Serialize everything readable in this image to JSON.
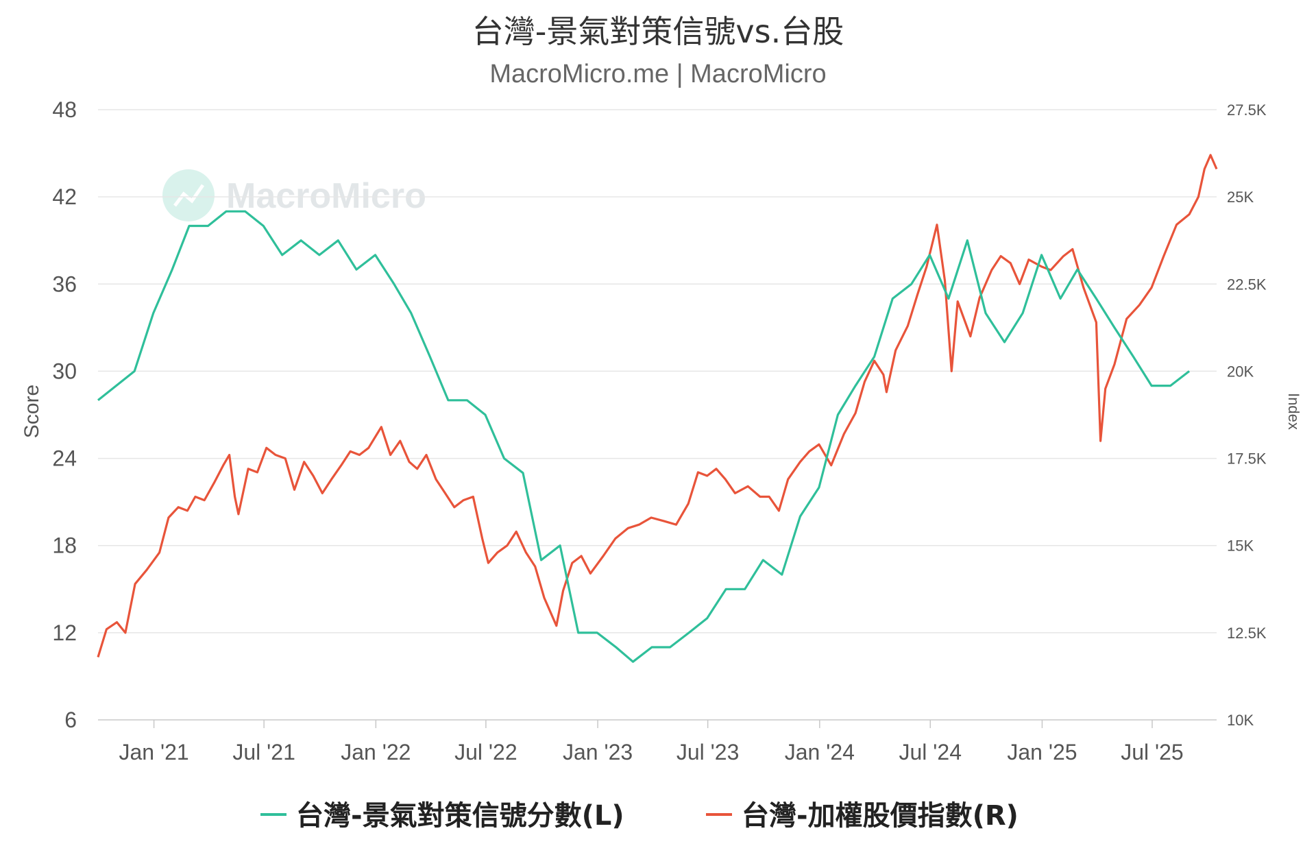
{
  "chart_data": {
    "type": "line",
    "title": "台灣-景氣對策信號vs.台股",
    "subtitle": "MacroMicro.me | MacroMicro",
    "watermark": "MacroMicro",
    "y_left": {
      "label": "Score",
      "ticks": [
        "48",
        "42",
        "36",
        "30",
        "24",
        "18",
        "12",
        "6"
      ],
      "range": [
        6,
        48
      ]
    },
    "y_right": {
      "label": "Index",
      "ticks": [
        "27.5K",
        "25K",
        "22.5K",
        "20K",
        "17.5K",
        "15K",
        "12.5K",
        "10K"
      ],
      "range": [
        10000,
        27500
      ]
    },
    "x_ticks": [
      "Jan '21",
      "Jul '21",
      "Jan '22",
      "Jul '22",
      "Jan '23",
      "Jul '23",
      "Jan '24",
      "Jul '24",
      "Jan '25",
      "Jul '25"
    ],
    "x_range": [
      "2020-10-01",
      "2025-10-15"
    ],
    "grid": true,
    "legend_position": "bottom",
    "colors": {
      "score": "#2fbf9a",
      "index": "#e8543a",
      "grid": "#e6e6e6"
    },
    "series": [
      {
        "name": "台灣-景氣對策信號分數(L)",
        "axis": "left",
        "color": "#2fbf9a",
        "points": [
          [
            "2020-10-01",
            28
          ],
          [
            "2020-11-30",
            30
          ],
          [
            "2020-12-31",
            34
          ],
          [
            "2021-01-31",
            37
          ],
          [
            "2021-02-28",
            40
          ],
          [
            "2021-03-31",
            40
          ],
          [
            "2021-04-30",
            41
          ],
          [
            "2021-05-31",
            41
          ],
          [
            "2021-06-30",
            40
          ],
          [
            "2021-07-31",
            38
          ],
          [
            "2021-08-31",
            39
          ],
          [
            "2021-09-30",
            38
          ],
          [
            "2021-10-31",
            39
          ],
          [
            "2021-11-30",
            37
          ],
          [
            "2021-12-31",
            38
          ],
          [
            "2022-01-31",
            36
          ],
          [
            "2022-02-28",
            34
          ],
          [
            "2022-03-31",
            31
          ],
          [
            "2022-04-30",
            28
          ],
          [
            "2022-05-31",
            28
          ],
          [
            "2022-06-30",
            27
          ],
          [
            "2022-07-31",
            24
          ],
          [
            "2022-08-31",
            23
          ],
          [
            "2022-09-30",
            17
          ],
          [
            "2022-10-31",
            18
          ],
          [
            "2022-11-30",
            12
          ],
          [
            "2022-12-31",
            12
          ],
          [
            "2023-01-31",
            11
          ],
          [
            "2023-02-28",
            10
          ],
          [
            "2023-03-31",
            11
          ],
          [
            "2023-04-30",
            11
          ],
          [
            "2023-05-31",
            12
          ],
          [
            "2023-06-30",
            13
          ],
          [
            "2023-07-31",
            15
          ],
          [
            "2023-08-31",
            15
          ],
          [
            "2023-09-30",
            17
          ],
          [
            "2023-10-31",
            16
          ],
          [
            "2023-11-30",
            20
          ],
          [
            "2023-12-31",
            22
          ],
          [
            "2024-01-31",
            27
          ],
          [
            "2024-02-29",
            29
          ],
          [
            "2024-03-31",
            31
          ],
          [
            "2024-04-30",
            35
          ],
          [
            "2024-05-31",
            36
          ],
          [
            "2024-06-30",
            38
          ],
          [
            "2024-07-31",
            35
          ],
          [
            "2024-08-31",
            39
          ],
          [
            "2024-09-30",
            34
          ],
          [
            "2024-10-31",
            32
          ],
          [
            "2024-11-30",
            34
          ],
          [
            "2024-12-31",
            38
          ],
          [
            "2025-01-31",
            35
          ],
          [
            "2025-02-28",
            37
          ],
          [
            "2025-03-31",
            35
          ],
          [
            "2025-04-30",
            33
          ],
          [
            "2025-05-31",
            31
          ],
          [
            "2025-06-30",
            29
          ],
          [
            "2025-07-31",
            29
          ],
          [
            "2025-08-31",
            30
          ]
        ]
      },
      {
        "name": "台灣-加權股價指數(R)",
        "axis": "right",
        "color": "#e8543a",
        "points": [
          [
            "2020-10-01",
            11800
          ],
          [
            "2020-10-15",
            12600
          ],
          [
            "2020-11-01",
            12800
          ],
          [
            "2020-11-15",
            12500
          ],
          [
            "2020-12-01",
            13900
          ],
          [
            "2020-12-20",
            14300
          ],
          [
            "2021-01-10",
            14800
          ],
          [
            "2021-01-25",
            15800
          ],
          [
            "2021-02-10",
            16100
          ],
          [
            "2021-02-25",
            16000
          ],
          [
            "2021-03-10",
            16400
          ],
          [
            "2021-03-25",
            16300
          ],
          [
            "2021-04-10",
            16800
          ],
          [
            "2021-04-25",
            17300
          ],
          [
            "2021-05-05",
            17600
          ],
          [
            "2021-05-14",
            16400
          ],
          [
            "2021-05-20",
            15900
          ],
          [
            "2021-06-05",
            17200
          ],
          [
            "2021-06-20",
            17100
          ],
          [
            "2021-07-05",
            17800
          ],
          [
            "2021-07-20",
            17600
          ],
          [
            "2021-08-05",
            17500
          ],
          [
            "2021-08-20",
            16600
          ],
          [
            "2021-09-05",
            17400
          ],
          [
            "2021-09-20",
            17000
          ],
          [
            "2021-10-05",
            16500
          ],
          [
            "2021-10-20",
            16900
          ],
          [
            "2021-11-05",
            17300
          ],
          [
            "2021-11-20",
            17700
          ],
          [
            "2021-12-05",
            17600
          ],
          [
            "2021-12-20",
            17800
          ],
          [
            "2022-01-10",
            18400
          ],
          [
            "2022-01-25",
            17600
          ],
          [
            "2022-02-10",
            18000
          ],
          [
            "2022-02-25",
            17400
          ],
          [
            "2022-03-10",
            17200
          ],
          [
            "2022-03-25",
            17600
          ],
          [
            "2022-04-10",
            16900
          ],
          [
            "2022-04-25",
            16500
          ],
          [
            "2022-05-10",
            16100
          ],
          [
            "2022-05-25",
            16300
          ],
          [
            "2022-06-10",
            16400
          ],
          [
            "2022-06-25",
            15200
          ],
          [
            "2022-07-05",
            14500
          ],
          [
            "2022-07-20",
            14800
          ],
          [
            "2022-08-05",
            15000
          ],
          [
            "2022-08-20",
            15400
          ],
          [
            "2022-09-05",
            14800
          ],
          [
            "2022-09-20",
            14400
          ],
          [
            "2022-10-05",
            13500
          ],
          [
            "2022-10-25",
            12700
          ],
          [
            "2022-11-05",
            13700
          ],
          [
            "2022-11-20",
            14500
          ],
          [
            "2022-12-05",
            14700
          ],
          [
            "2022-12-20",
            14200
          ],
          [
            "2023-01-10",
            14700
          ],
          [
            "2023-01-30",
            15200
          ],
          [
            "2023-02-20",
            15500
          ],
          [
            "2023-03-10",
            15600
          ],
          [
            "2023-03-30",
            15800
          ],
          [
            "2023-04-20",
            15700
          ],
          [
            "2023-05-10",
            15600
          ],
          [
            "2023-05-30",
            16200
          ],
          [
            "2023-06-15",
            17100
          ],
          [
            "2023-06-30",
            17000
          ],
          [
            "2023-07-15",
            17200
          ],
          [
            "2023-07-30",
            16900
          ],
          [
            "2023-08-15",
            16500
          ],
          [
            "2023-09-05",
            16700
          ],
          [
            "2023-09-25",
            16400
          ],
          [
            "2023-10-10",
            16400
          ],
          [
            "2023-10-26",
            16000
          ],
          [
            "2023-11-10",
            16900
          ],
          [
            "2023-11-30",
            17400
          ],
          [
            "2023-12-15",
            17700
          ],
          [
            "2023-12-31",
            17900
          ],
          [
            "2024-01-20",
            17300
          ],
          [
            "2024-02-10",
            18200
          ],
          [
            "2024-02-29",
            18800
          ],
          [
            "2024-03-15",
            19700
          ],
          [
            "2024-03-31",
            20300
          ],
          [
            "2024-04-15",
            19900
          ],
          [
            "2024-04-20",
            19400
          ],
          [
            "2024-05-05",
            20600
          ],
          [
            "2024-05-25",
            21300
          ],
          [
            "2024-06-10",
            22200
          ],
          [
            "2024-06-25",
            23000
          ],
          [
            "2024-07-12",
            24200
          ],
          [
            "2024-07-25",
            22600
          ],
          [
            "2024-08-05",
            20000
          ],
          [
            "2024-08-15",
            22000
          ],
          [
            "2024-09-05",
            21000
          ],
          [
            "2024-09-20",
            22100
          ],
          [
            "2024-10-10",
            22900
          ],
          [
            "2024-10-25",
            23300
          ],
          [
            "2024-11-10",
            23100
          ],
          [
            "2024-11-25",
            22500
          ],
          [
            "2024-12-10",
            23200
          ],
          [
            "2024-12-31",
            23000
          ],
          [
            "2025-01-15",
            22900
          ],
          [
            "2025-02-05",
            23300
          ],
          [
            "2025-02-20",
            23500
          ],
          [
            "2025-03-10",
            22400
          ],
          [
            "2025-03-31",
            21400
          ],
          [
            "2025-04-07",
            18000
          ],
          [
            "2025-04-15",
            19500
          ],
          [
            "2025-04-30",
            20200
          ],
          [
            "2025-05-20",
            21500
          ],
          [
            "2025-06-10",
            21900
          ],
          [
            "2025-06-30",
            22400
          ],
          [
            "2025-07-20",
            23300
          ],
          [
            "2025-08-10",
            24200
          ],
          [
            "2025-08-31",
            24500
          ],
          [
            "2025-09-15",
            25000
          ],
          [
            "2025-09-25",
            25800
          ],
          [
            "2025-10-05",
            26200
          ],
          [
            "2025-10-15",
            25800
          ]
        ]
      }
    ]
  }
}
